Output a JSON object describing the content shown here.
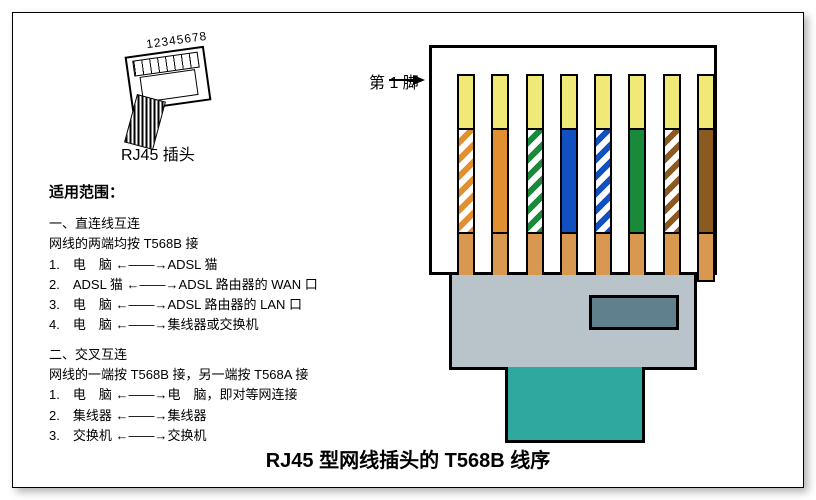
{
  "small_plug": {
    "pin_numbers": "12345678",
    "label": "RJ45 插头"
  },
  "pin1_label": "第 1 脚",
  "text": {
    "heading": "适用范围：",
    "section1_title": "一、直连线互连",
    "section1_note": "网线的两端均按 T568B 接",
    "section1_items": [
      "1.　电　脑 ←——→ADSL 猫",
      "2.　ADSL 猫 ←——→ADSL 路由器的 WAN 口",
      "3.　电　脑 ←——→ADSL 路由器的 LAN 口",
      "4.　电　脑 ←——→集线器或交换机"
    ],
    "section2_title": "二、交叉互连",
    "section2_note": "网线的一端按 T568B 接，另一端按 T568A 接",
    "section2_items": [
      "1.　电　脑 ←——→电　脑，即对等网连接",
      "2.　集线器 ←——→集线器",
      "3.　交换机 ←——→交换机"
    ]
  },
  "wires": {
    "pin_gold_color": "#f0e978",
    "lower_jacket_color": "#d8984f",
    "colors": [
      {
        "type": "stripe",
        "a": "#ffffff",
        "b": "#e09030"
      },
      {
        "type": "solid",
        "a": "#e09030"
      },
      {
        "type": "stripe",
        "a": "#ffffff",
        "b": "#1a8a3a"
      },
      {
        "type": "solid",
        "a": "#1050c0"
      },
      {
        "type": "stripe",
        "a": "#ffffff",
        "b": "#1050c0"
      },
      {
        "type": "solid",
        "a": "#1a8a3a"
      },
      {
        "type": "stripe",
        "a": "#ffffff",
        "b": "#8a5a20"
      },
      {
        "type": "solid",
        "a": "#8a5a20"
      }
    ]
  },
  "connector_colors": {
    "body": "#b8c4c9",
    "clip": "#5f808c",
    "cable": "#2fa8a0"
  },
  "title": "RJ45 型网线插头的 T568B 线序"
}
